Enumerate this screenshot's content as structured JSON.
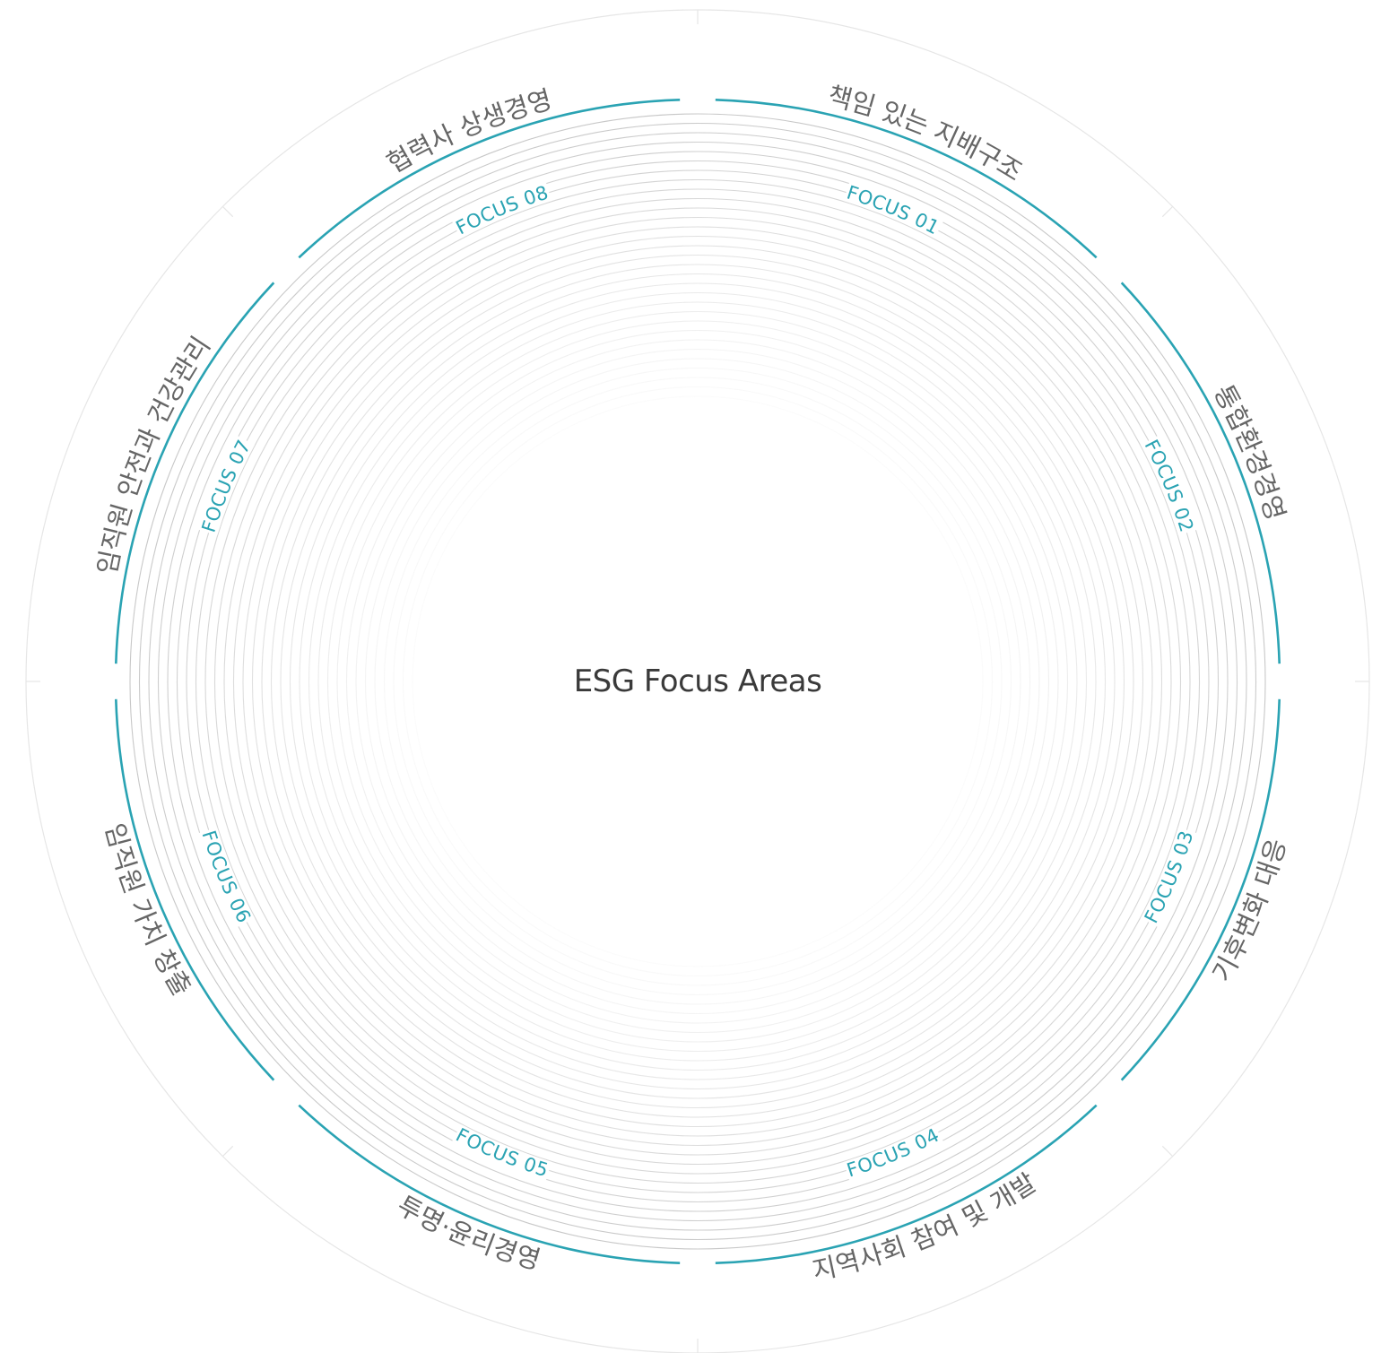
{
  "title": "ESG Focus Areas",
  "colors": {
    "accent": "#2aa3b3",
    "title_text": "#666666",
    "center_text": "#3a3a3a",
    "ring_stroke": "#c8c8c8",
    "outer_ring": "#e6e6e6"
  },
  "focus_areas": [
    {
      "label": "FOCUS 01",
      "title": "책임 있는 지배구조"
    },
    {
      "label": "FOCUS 02",
      "title": "통합환경경영"
    },
    {
      "label": "FOCUS 03",
      "title": "기후변화 대응"
    },
    {
      "label": "FOCUS 04",
      "title": "지역사회 참여 및 개발"
    },
    {
      "label": "FOCUS 05",
      "title": "투명·윤리경영"
    },
    {
      "label": "FOCUS 06",
      "title": "임직원 가치 창출"
    },
    {
      "label": "FOCUS 07",
      "title": "임직원 안전과 건강관리"
    },
    {
      "label": "FOCUS 08",
      "title": "협력사 상생경영"
    }
  ]
}
